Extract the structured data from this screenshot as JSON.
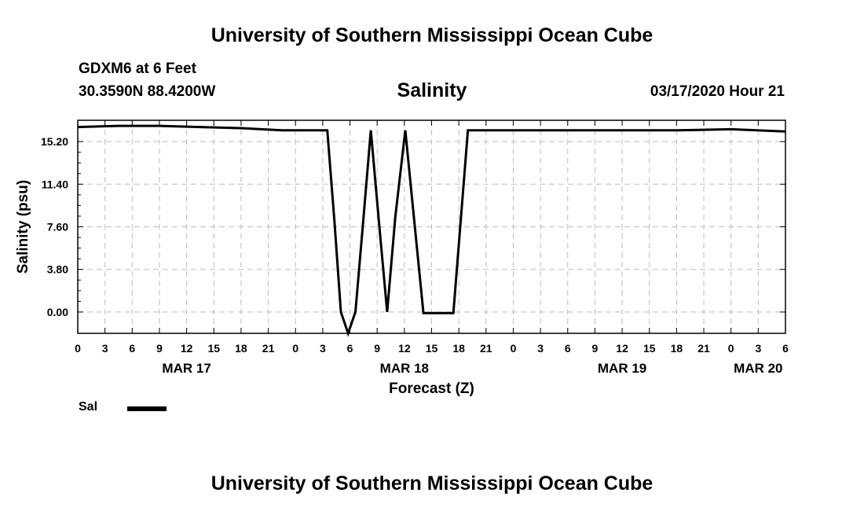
{
  "page": {
    "title_top": "University of Southern Mississippi Ocean Cube",
    "title_bottom": "University of Southern Mississippi Ocean Cube",
    "station": "GDXM6 at 6 Feet",
    "coords": "30.3590N 88.4200W",
    "chart_title": "Salinity",
    "datetime": "03/17/2020 Hour 21"
  },
  "legend": {
    "label": "Sal",
    "color": "#000000"
  },
  "chart_data": {
    "type": "line",
    "title": "Salinity",
    "xlabel": "Forecast (Z)",
    "ylabel": "Salinity (psu)",
    "xlim": [
      0,
      78
    ],
    "ylim": [
      -1.9,
      17.1
    ],
    "yticks": [
      0.0,
      3.8,
      7.6,
      11.4,
      15.2
    ],
    "ytick_labels": [
      "0.00",
      "3.80",
      "7.60",
      "11.40",
      "15.20"
    ],
    "xticks": [
      0,
      3,
      6,
      9,
      12,
      15,
      18,
      21,
      24,
      27,
      30,
      33,
      36,
      39,
      42,
      45,
      48,
      51,
      54,
      57,
      60,
      63,
      66,
      69,
      72,
      75,
      78
    ],
    "xtick_labels": [
      "0",
      "3",
      "6",
      "9",
      "12",
      "15",
      "18",
      "21",
      "0",
      "3",
      "6",
      "9",
      "12",
      "15",
      "18",
      "21",
      "0",
      "3",
      "6",
      "9",
      "12",
      "15",
      "18",
      "21",
      "0",
      "3",
      "6"
    ],
    "date_labels": [
      {
        "x": 12,
        "label": "MAR 17"
      },
      {
        "x": 36,
        "label": "MAR 18"
      },
      {
        "x": 60,
        "label": "MAR 19"
      },
      {
        "x": 75,
        "label": "MAR 20"
      }
    ],
    "grid": true,
    "series": [
      {
        "name": "Sal",
        "color": "#000000",
        "x": [
          0,
          4.5,
          9,
          13.5,
          18,
          22.5,
          27.5,
          28.3,
          29,
          29.8,
          30.6,
          31.5,
          32.3,
          33.2,
          34.1,
          35.0,
          36.1,
          37.1,
          38.1,
          40.3,
          41.4,
          43,
          48,
          54,
          60,
          66,
          72,
          78
        ],
        "y": [
          16.5,
          16.6,
          16.6,
          16.5,
          16.4,
          16.2,
          16.2,
          8.0,
          0.0,
          -1.9,
          0.0,
          8.5,
          16.2,
          8.0,
          0.0,
          8.5,
          16.2,
          8.0,
          -0.1,
          -0.1,
          -0.1,
          16.2,
          16.2,
          16.2,
          16.2,
          16.2,
          16.3,
          16.1
        ]
      }
    ]
  }
}
